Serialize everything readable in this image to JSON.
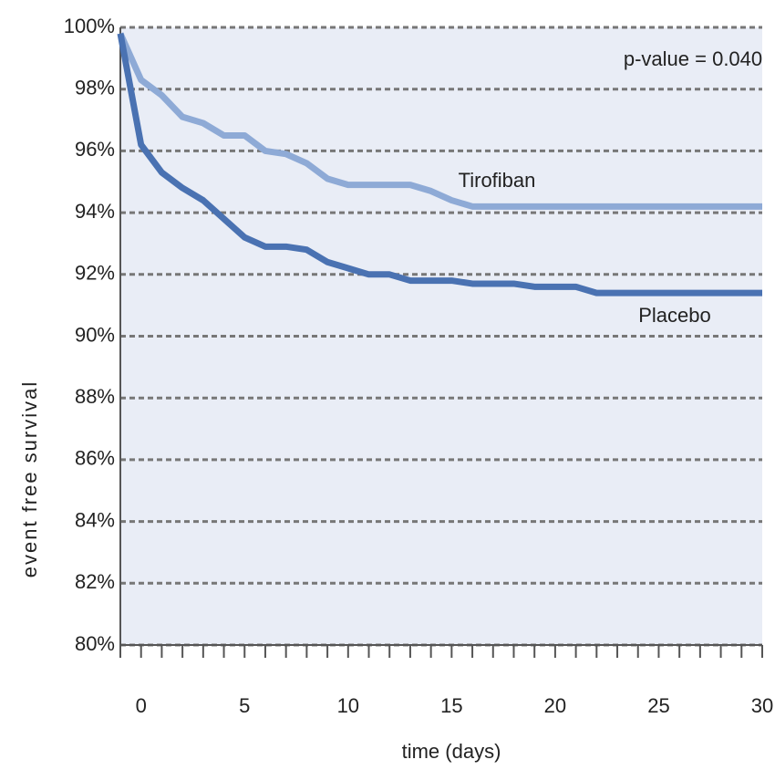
{
  "chart_data": {
    "type": "line",
    "x_label": "time (days)",
    "y_label": "event free survival",
    "annotation": "p-value = 0.040",
    "x": [
      -1,
      0,
      1,
      2,
      3,
      4,
      5,
      6,
      7,
      8,
      9,
      10,
      11,
      12,
      13,
      14,
      15,
      16,
      17,
      18,
      19,
      20,
      21,
      22,
      23,
      24,
      25,
      26,
      27,
      28,
      29,
      30
    ],
    "series": [
      {
        "name": "Tirofiban",
        "color": "#8eaad6",
        "values": [
          99.8,
          98.3,
          97.8,
          97.1,
          96.9,
          96.5,
          96.5,
          96.0,
          95.9,
          95.6,
          95.1,
          94.9,
          94.9,
          94.9,
          94.9,
          94.7,
          94.4,
          94.2,
          94.2,
          94.2,
          94.2,
          94.2,
          94.2,
          94.2,
          94.2,
          94.2,
          94.2,
          94.2,
          94.2,
          94.2,
          94.2,
          94.2
        ]
      },
      {
        "name": "Placebo",
        "color": "#4a72b2",
        "values": [
          99.8,
          96.2,
          95.3,
          94.8,
          94.4,
          93.8,
          93.2,
          92.9,
          92.9,
          92.8,
          92.4,
          92.2,
          92.0,
          92.0,
          91.8,
          91.8,
          91.8,
          91.7,
          91.7,
          91.7,
          91.6,
          91.6,
          91.6,
          91.4,
          91.4,
          91.4,
          91.4,
          91.4,
          91.4,
          91.4,
          91.4,
          91.4
        ]
      }
    ],
    "xlim": [
      -1,
      30
    ],
    "xticks": [
      0,
      5,
      10,
      15,
      20,
      25,
      30
    ],
    "ylim": [
      80,
      100
    ],
    "yticks": [
      {
        "value": 80,
        "label": "80%"
      },
      {
        "value": 82,
        "label": "82%"
      },
      {
        "value": 84,
        "label": "84%"
      },
      {
        "value": 86,
        "label": "86%"
      },
      {
        "value": 88,
        "label": "88%"
      },
      {
        "value": 90,
        "label": "90%"
      },
      {
        "value": 92,
        "label": "92%"
      },
      {
        "value": 94,
        "label": "94%"
      },
      {
        "value": 96,
        "label": "96%"
      },
      {
        "value": 98,
        "label": "98%"
      },
      {
        "value": 100,
        "label": "100%"
      }
    ],
    "grid": true
  }
}
